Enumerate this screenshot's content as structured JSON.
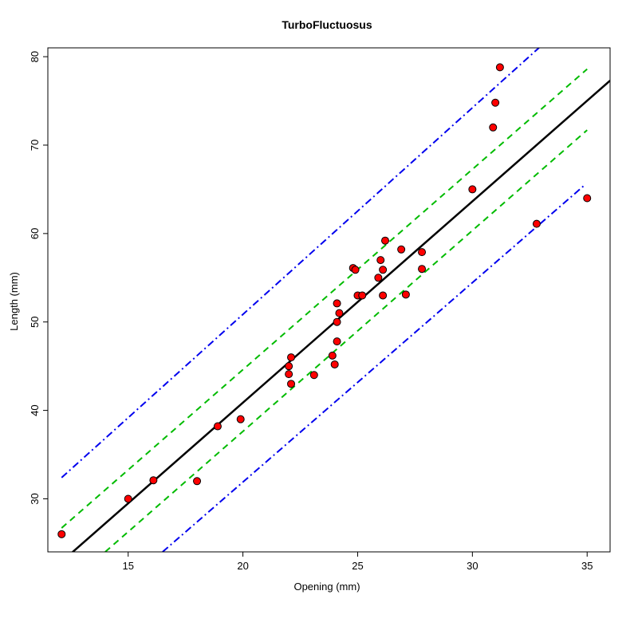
{
  "chart_data": {
    "type": "scatter",
    "title": "TurboFluctuosus",
    "xlabel": "Opening (mm)",
    "ylabel": "Length (mm)",
    "xlim": [
      11.5,
      36.0
    ],
    "ylim": [
      24.0,
      81.0
    ],
    "x_ticks": [
      15,
      20,
      25,
      30,
      35
    ],
    "y_ticks": [
      30,
      40,
      50,
      60,
      70,
      80
    ],
    "grid": false,
    "legend": "none",
    "colors": {
      "point_fill": "#ff0000",
      "point_stroke": "#000000",
      "regression_line": "#000000",
      "confidence_band": "#00bb00",
      "prediction_band": "#0000ee"
    },
    "points": [
      {
        "x": 12.1,
        "y": 26.0
      },
      {
        "x": 15.0,
        "y": 30.0
      },
      {
        "x": 16.1,
        "y": 32.1
      },
      {
        "x": 18.0,
        "y": 32.0
      },
      {
        "x": 18.9,
        "y": 38.2
      },
      {
        "x": 19.9,
        "y": 39.0
      },
      {
        "x": 22.0,
        "y": 45.0
      },
      {
        "x": 22.1,
        "y": 46.0
      },
      {
        "x": 22.0,
        "y": 44.1
      },
      {
        "x": 22.1,
        "y": 43.0
      },
      {
        "x": 23.1,
        "y": 44.0
      },
      {
        "x": 23.9,
        "y": 46.2
      },
      {
        "x": 24.0,
        "y": 45.2
      },
      {
        "x": 24.1,
        "y": 47.8
      },
      {
        "x": 24.1,
        "y": 50.0
      },
      {
        "x": 24.2,
        "y": 51.0
      },
      {
        "x": 24.1,
        "y": 52.1
      },
      {
        "x": 24.8,
        "y": 56.1
      },
      {
        "x": 24.9,
        "y": 55.9
      },
      {
        "x": 25.0,
        "y": 53.0
      },
      {
        "x": 25.2,
        "y": 53.0
      },
      {
        "x": 25.9,
        "y": 55.0
      },
      {
        "x": 26.0,
        "y": 57.0
      },
      {
        "x": 26.1,
        "y": 53.0
      },
      {
        "x": 26.1,
        "y": 55.9
      },
      {
        "x": 26.2,
        "y": 59.2
      },
      {
        "x": 26.9,
        "y": 58.2
      },
      {
        "x": 27.1,
        "y": 53.1
      },
      {
        "x": 27.8,
        "y": 57.9
      },
      {
        "x": 27.8,
        "y": 56.0
      },
      {
        "x": 30.0,
        "y": 65.0
      },
      {
        "x": 30.9,
        "y": 72.0
      },
      {
        "x": 31.0,
        "y": 74.8
      },
      {
        "x": 31.2,
        "y": 78.8
      },
      {
        "x": 32.8,
        "y": 61.1
      },
      {
        "x": 35.0,
        "y": 64.0
      }
    ],
    "regression_line": {
      "x": [
        12.5,
        36.0
      ],
      "y": [
        23.8,
        77.3
      ]
    },
    "confidence_band": {
      "upper": {
        "x": [
          12.1,
          35.0
        ],
        "y": [
          26.7,
          78.6
        ]
      },
      "lower": {
        "x": [
          14.0,
          35.0
        ],
        "y": [
          24.0,
          71.7
        ]
      }
    },
    "prediction_band": {
      "upper": {
        "x": [
          12.1,
          32.9
        ],
        "y": [
          32.4,
          81.0
        ]
      },
      "lower": {
        "x": [
          16.5,
          34.9
        ],
        "y": [
          24.0,
          65.5
        ]
      }
    }
  }
}
